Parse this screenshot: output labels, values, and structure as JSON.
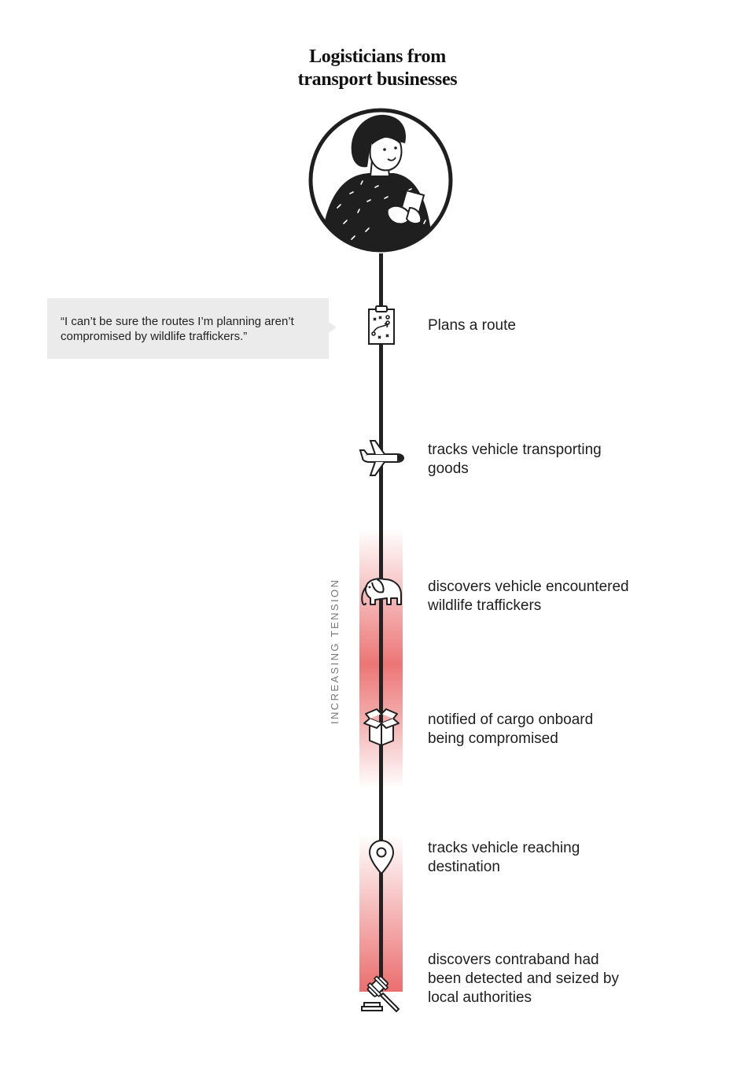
{
  "header": {
    "title_line1": "Logisticians from",
    "title_line2": "transport businesses"
  },
  "quote": {
    "text": "“I can’t be sure the routes I’m planning aren’t compromised by wildlife traffickers.”"
  },
  "tension_label": "INCREASING TENSION",
  "steps": [
    {
      "label": "Plans a route",
      "icon": "clipboard-route-icon"
    },
    {
      "label": "tracks vehicle transporting goods",
      "icon": "airplane-icon"
    },
    {
      "label": "discovers vehicle encountered wildlife traffickers",
      "icon": "elephant-icon"
    },
    {
      "label": "notified of cargo onboard being compromised",
      "icon": "open-box-icon"
    },
    {
      "label": "tracks vehicle reaching destination",
      "icon": "map-pin-icon"
    },
    {
      "label": "discovers contraband had been detected and seized by local authorities",
      "icon": "gavel-icon"
    }
  ],
  "colors": {
    "line": "#222222",
    "tension_band": "#eb6e6e",
    "quote_bg": "#ebebeb",
    "tension_text": "#777777"
  }
}
